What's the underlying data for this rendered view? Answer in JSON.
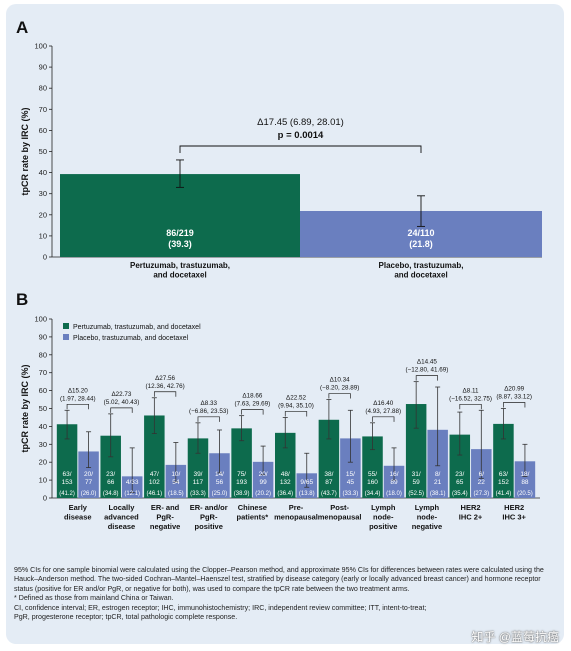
{
  "colors": {
    "pertuzumab": "#0d6b4d",
    "placebo": "#6a7fbf",
    "bg": "#e4ecf5"
  },
  "panel_a": {
    "letter": "A",
    "comparison_delta": "Δ17.45 (6.89, 28.01)",
    "comparison_p": "p = 0.0014",
    "category_labels": [
      [
        "Pertuzumab, trastuzumab,",
        "and docetaxel"
      ],
      [
        "Placebo, trastuzumab,",
        "and docetaxel"
      ]
    ],
    "bar_labels": [
      [
        "86/219",
        "(39.3)"
      ],
      [
        "24/110",
        "(21.8)"
      ]
    ]
  },
  "panel_b": {
    "letter": "B",
    "legend": [
      "Pertuzumab, trastuzumab, and docetaxel",
      "Placebo, trastuzumab, and docetaxel"
    ],
    "groups": [
      {
        "label": [
          "Early",
          "disease"
        ],
        "delta": [
          "Δ15.20",
          "(1.97, 28.44)"
        ],
        "p_count": [
          "63/",
          "153"
        ],
        "p_pct": "(41.2)",
        "c_count": [
          "20/",
          "77"
        ],
        "c_pct": "(26.0)"
      },
      {
        "label": [
          "Locally",
          "advanced",
          "disease"
        ],
        "delta": [
          "Δ22.73",
          "(5.02, 40.43)"
        ],
        "p_count": [
          "23/",
          "66"
        ],
        "p_pct": "(34.8)",
        "c_count": [
          "4/33"
        ],
        "c_pct": "(12.1)"
      },
      {
        "label": [
          "ER- and",
          "PgR-",
          "negative"
        ],
        "delta": [
          "Δ27.56",
          "(12.36, 42.76)"
        ],
        "p_count": [
          "47/",
          "102"
        ],
        "p_pct": "(46.1)",
        "c_count": [
          "10/",
          "54"
        ],
        "c_pct": "(18.5)"
      },
      {
        "label": [
          "ER- and/or",
          "PgR-",
          "positive"
        ],
        "delta": [
          "Δ8.33",
          "(−6.86, 23.53)"
        ],
        "p_count": [
          "39/",
          "117"
        ],
        "p_pct": "(33.3)",
        "c_count": [
          "14/",
          "56"
        ],
        "c_pct": "(25.0)"
      },
      {
        "label": [
          "Chinese",
          "patients*"
        ],
        "delta": [
          "Δ18.66",
          "(7.63, 29.69)"
        ],
        "p_count": [
          "75/",
          "193"
        ],
        "p_pct": "(38.9)",
        "c_count": [
          "20/",
          "99"
        ],
        "c_pct": "(20.2)"
      },
      {
        "label": [
          "Pre-",
          "menopausal"
        ],
        "delta": [
          "Δ22.52",
          "(9.94, 35.10)"
        ],
        "p_count": [
          "48/",
          "132"
        ],
        "p_pct": "(36.4)",
        "c_count": [
          "9/65"
        ],
        "c_pct": "(13.8)"
      },
      {
        "label": [
          "Post-",
          "menopausal"
        ],
        "delta": [
          "Δ10.34",
          "(−8.20, 28.89)"
        ],
        "p_count": [
          "38/",
          "87"
        ],
        "p_pct": "(43.7)",
        "c_count": [
          "15/",
          "45"
        ],
        "c_pct": "(33.3)"
      },
      {
        "label": [
          "Lymph",
          "node-",
          "positive"
        ],
        "delta": [
          "Δ16.40",
          "(4.93, 27.88)"
        ],
        "p_count": [
          "55/",
          "160"
        ],
        "p_pct": "(34.4)",
        "c_count": [
          "16/",
          "89"
        ],
        "c_pct": "(18.0)"
      },
      {
        "label": [
          "Lymph",
          "node-",
          "negative"
        ],
        "delta": [
          "Δ14.45",
          "(−12.80, 41.69)"
        ],
        "p_count": [
          "31/",
          "59"
        ],
        "p_pct": "(52.5)",
        "c_count": [
          "8/",
          "21"
        ],
        "c_pct": "(38.1)"
      },
      {
        "label": [
          "HER2",
          "IHC 2+"
        ],
        "delta": [
          "Δ8.11",
          "(−16.52, 32.75)"
        ],
        "p_count": [
          "23/",
          "65"
        ],
        "p_pct": "(35.4)",
        "c_count": [
          "6/",
          "22"
        ],
        "c_pct": "(27.3)"
      },
      {
        "label": [
          "HER2",
          "IHC 3+"
        ],
        "delta": [
          "Δ20.99",
          "(8.87, 33.12)"
        ],
        "p_count": [
          "63/",
          "152"
        ],
        "p_pct": "(41.4)",
        "c_count": [
          "18/",
          "88"
        ],
        "c_pct": "(20.5)"
      }
    ]
  },
  "footnotes": [
    "95% CIs for one sample binomial were calculated using the Clopper–Pearson method, and approximate 95% CIs for differences between rates were calculated using the Hauck–Anderson method. The two-sided Cochran–Mantel–Haenszel test, stratified by disease category (early or locally advanced breast cancer) and hormone receptor status (positive for ER and/or PgR, or negative for both), was used to compare the tpCR rate between the two treatment arms.",
    "* Defined as those from mainland China or Taiwan.",
    "CI, confidence interval; ER, estrogen receptor; IHC, immunohistochemistry; IRC, independent review committee; ITT, intent-to-treat;",
    "PgR, progesterone receptor; tpCR, total pathologic complete response."
  ],
  "watermark": "知乎 @蓝莓抗癌",
  "chart_data": [
    {
      "type": "bar",
      "ylabel": "tpCR rate by IRC (%)",
      "ylim": [
        0,
        100
      ],
      "yticks": [
        0,
        10,
        20,
        30,
        40,
        50,
        60,
        70,
        80,
        90,
        100
      ],
      "categories": [
        "Pertuzumab, trastuzumab, and docetaxel",
        "Placebo, trastuzumab, and docetaxel"
      ],
      "values": [
        39.3,
        21.8
      ],
      "ci": [
        [
          33.0,
          46.0
        ],
        [
          14.5,
          29.0
        ]
      ],
      "annotation": "Δ17.45 (6.89, 28.01) p = 0.0014"
    },
    {
      "type": "bar",
      "ylabel": "tpCR rate by IRC (%)",
      "ylim": [
        0,
        100
      ],
      "yticks": [
        0,
        10,
        20,
        30,
        40,
        50,
        60,
        70,
        80,
        90,
        100
      ],
      "categories": [
        "Early disease",
        "Locally advanced disease",
        "ER- and PgR-negative",
        "ER- and/or PgR-positive",
        "Chinese patients*",
        "Pre-menopausal",
        "Post-menopausal",
        "Lymph node-positive",
        "Lymph node-negative",
        "HER2 IHC 2+",
        "HER2 IHC 3+"
      ],
      "series": [
        {
          "name": "Pertuzumab, trastuzumab, and docetaxel",
          "values": [
            41.2,
            34.8,
            46.1,
            33.3,
            38.9,
            36.4,
            43.7,
            34.4,
            52.5,
            35.4,
            41.4
          ],
          "ci_low": [
            33,
            23,
            36,
            25,
            32,
            28,
            33,
            27,
            39,
            24,
            33
          ],
          "ci_high": [
            49,
            47,
            56,
            42,
            46,
            45,
            55,
            42,
            65,
            48,
            50
          ]
        },
        {
          "name": "Placebo, trastuzumab, and docetaxel",
          "values": [
            26.0,
            12.1,
            18.5,
            25.0,
            20.2,
            13.8,
            33.3,
            18.0,
            38.1,
            27.3,
            20.5
          ],
          "ci_low": [
            17,
            3,
            9,
            14,
            13,
            6,
            20,
            10,
            18,
            11,
            12
          ],
          "ci_high": [
            37,
            28,
            31,
            38,
            29,
            25,
            49,
            28,
            62,
            49,
            30
          ]
        }
      ],
      "legend_position": "top-left"
    }
  ]
}
